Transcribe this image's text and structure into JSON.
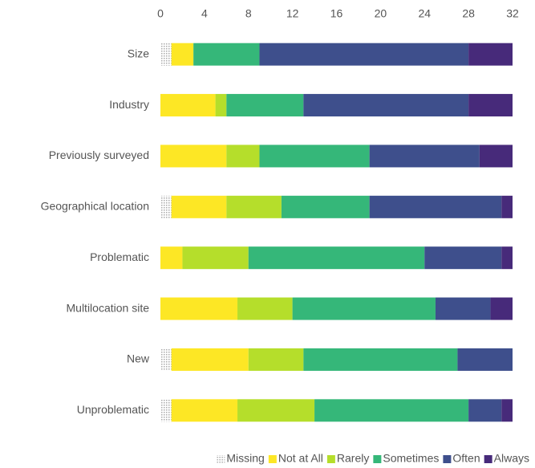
{
  "chart_data": {
    "type": "stacked-bar",
    "orientation": "horizontal",
    "categories": [
      "Size",
      "Industry",
      "Previously surveyed",
      "Geographical location",
      "Problematic",
      "Multilocation site",
      "New",
      "Unproblematic"
    ],
    "series": [
      {
        "name": "Missing",
        "color": "#aaaaaa",
        "pattern": "dots",
        "values": [
          1,
          0,
          0,
          1,
          0,
          0,
          1,
          1
        ]
      },
      {
        "name": "Not at All",
        "color": "#fde725",
        "values": [
          2,
          5,
          6,
          5,
          2,
          7,
          7,
          6
        ]
      },
      {
        "name": "Rarely",
        "color": "#b5de2b",
        "values": [
          0,
          1,
          3,
          5,
          6,
          5,
          5,
          7
        ]
      },
      {
        "name": "Sometimes",
        "color": "#35b779",
        "values": [
          6,
          7,
          10,
          8,
          16,
          13,
          14,
          14
        ]
      },
      {
        "name": "Often",
        "color": "#3e4f8c",
        "values": [
          19,
          15,
          10,
          12,
          7,
          5,
          5,
          3
        ]
      },
      {
        "name": "Always",
        "color": "#472a7a",
        "values": [
          4,
          4,
          3,
          1,
          1,
          2,
          0,
          1
        ]
      }
    ],
    "xlim": [
      0,
      32
    ],
    "xticks": [
      0,
      4,
      8,
      12,
      16,
      20,
      24,
      28,
      32
    ],
    "grid": false,
    "legend": "bottom-right"
  }
}
